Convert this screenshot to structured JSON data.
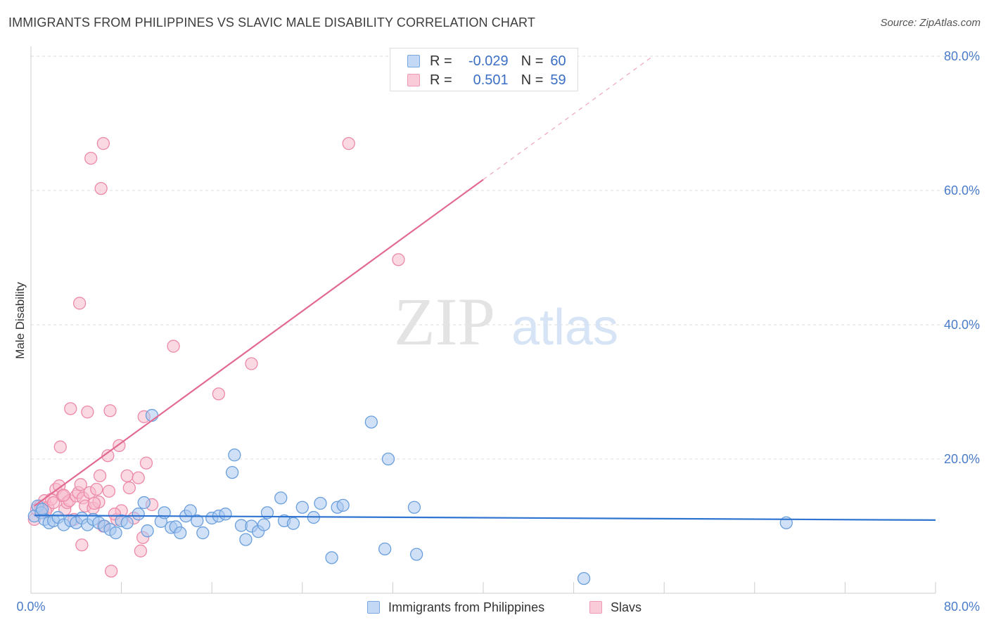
{
  "title": "IMMIGRANTS FROM PHILIPPINES VS SLAVIC MALE DISABILITY CORRELATION CHART",
  "source": "Source: ZipAtlas.com",
  "watermark": {
    "zip": "ZIP",
    "atlas": "atlas"
  },
  "legend": {
    "r_label": "R =",
    "n_label": "N =",
    "series": [
      {
        "r": "-0.029",
        "n": "60"
      },
      {
        "r": "0.501",
        "n": "59"
      }
    ]
  },
  "colors": {
    "blue_fill": "#a9c8f0",
    "blue_stroke": "#6a9fdc",
    "blue_line": "#2f74d0",
    "pink_fill": "#f7b9cc",
    "pink_stroke": "#ec8aa8",
    "pink_line": "#e26a92",
    "axis_text": "#4a7cc9",
    "grid": "#dddddd"
  },
  "chart_data": {
    "type": "scatter",
    "title": "IMMIGRANTS FROM PHILIPPINES VS SLAVIC MALE DISABILITY CORRELATION CHART",
    "xlabel": "",
    "ylabel": "Male Disability",
    "xlim": [
      0,
      80
    ],
    "ylim": [
      0,
      80
    ],
    "x_tick_labels": [
      "0.0%",
      "80.0%"
    ],
    "y_ticks": [
      20,
      40,
      60,
      80
    ],
    "y_tick_labels": [
      "20.0%",
      "40.0%",
      "60.0%",
      "80.0%"
    ],
    "series": [
      {
        "name": "Immigrants from Philippines",
        "r": -0.029,
        "n": 60,
        "trend": {
          "x0": 0.3,
          "y0": 11.6,
          "x1": 80,
          "y1": 10.9,
          "x_solid_end": 80
        },
        "points": [
          [
            0.3,
            11.5
          ],
          [
            0.6,
            13.0
          ],
          [
            0.9,
            12.0
          ],
          [
            1.2,
            11.0
          ],
          [
            1.6,
            10.5
          ],
          [
            2.0,
            10.8
          ],
          [
            2.4,
            11.3
          ],
          [
            2.9,
            10.2
          ],
          [
            3.5,
            10.8
          ],
          [
            4.0,
            10.5
          ],
          [
            4.5,
            11.2
          ],
          [
            5.0,
            10.2
          ],
          [
            5.5,
            11.0
          ],
          [
            6.0,
            10.5
          ],
          [
            6.5,
            10.0
          ],
          [
            7.0,
            9.5
          ],
          [
            7.5,
            9.0
          ],
          [
            8.0,
            10.8
          ],
          [
            8.5,
            10.5
          ],
          [
            9.5,
            11.8
          ],
          [
            10.0,
            13.5
          ],
          [
            10.3,
            9.3
          ],
          [
            10.7,
            26.5
          ],
          [
            11.5,
            10.7
          ],
          [
            11.8,
            12.0
          ],
          [
            12.4,
            9.8
          ],
          [
            12.8,
            9.9
          ],
          [
            13.2,
            9.0
          ],
          [
            13.7,
            11.5
          ],
          [
            14.1,
            12.3
          ],
          [
            14.7,
            10.8
          ],
          [
            15.2,
            9.0
          ],
          [
            16.0,
            11.2
          ],
          [
            16.6,
            11.5
          ],
          [
            17.2,
            11.8
          ],
          [
            17.8,
            18.0
          ],
          [
            18.0,
            20.6
          ],
          [
            18.6,
            10.1
          ],
          [
            19.0,
            8.0
          ],
          [
            19.5,
            10.0
          ],
          [
            20.1,
            9.2
          ],
          [
            20.6,
            10.2
          ],
          [
            20.9,
            12.0
          ],
          [
            22.1,
            14.2
          ],
          [
            22.4,
            10.8
          ],
          [
            23.2,
            10.4
          ],
          [
            24.0,
            12.8
          ],
          [
            25.0,
            11.3
          ],
          [
            25.6,
            13.4
          ],
          [
            26.6,
            5.3
          ],
          [
            27.1,
            12.8
          ],
          [
            27.6,
            13.1
          ],
          [
            30.1,
            25.5
          ],
          [
            31.3,
            6.6
          ],
          [
            31.6,
            20.0
          ],
          [
            33.9,
            12.8
          ],
          [
            34.1,
            5.8
          ],
          [
            48.9,
            2.2
          ],
          [
            66.8,
            10.5
          ],
          [
            1.0,
            12.5
          ]
        ]
      },
      {
        "name": "Slavs",
        "r": 0.501,
        "n": 59,
        "trend": {
          "x0": 0.3,
          "y0": 13.0,
          "x1": 55,
          "y1": 80,
          "x_solid_end": 40
        },
        "points": [
          [
            0.3,
            11.0
          ],
          [
            0.5,
            12.5
          ],
          [
            0.8,
            13.0
          ],
          [
            1.0,
            12.0
          ],
          [
            1.2,
            13.8
          ],
          [
            1.5,
            12.8
          ],
          [
            1.8,
            14.0
          ],
          [
            2.0,
            13.5
          ],
          [
            2.2,
            15.5
          ],
          [
            2.5,
            16.0
          ],
          [
            2.8,
            14.5
          ],
          [
            2.6,
            21.8
          ],
          [
            3.0,
            12.5
          ],
          [
            3.2,
            13.5
          ],
          [
            3.4,
            13.8
          ],
          [
            3.5,
            27.5
          ],
          [
            3.8,
            11.0
          ],
          [
            4.0,
            14.5
          ],
          [
            4.2,
            15.0
          ],
          [
            4.3,
            43.2
          ],
          [
            4.4,
            16.2
          ],
          [
            4.6,
            14.2
          ],
          [
            4.8,
            13.0
          ],
          [
            4.5,
            7.2
          ],
          [
            5.0,
            27.0
          ],
          [
            5.2,
            15.0
          ],
          [
            5.3,
            64.8
          ],
          [
            5.5,
            12.7
          ],
          [
            5.8,
            15.5
          ],
          [
            6.0,
            13.6
          ],
          [
            6.1,
            17.5
          ],
          [
            6.2,
            60.3
          ],
          [
            6.4,
            10.0
          ],
          [
            6.4,
            67.0
          ],
          [
            6.8,
            20.5
          ],
          [
            6.9,
            15.2
          ],
          [
            7.0,
            27.2
          ],
          [
            7.1,
            3.3
          ],
          [
            7.6,
            11.0
          ],
          [
            7.8,
            22.0
          ],
          [
            8.0,
            12.3
          ],
          [
            8.5,
            17.5
          ],
          [
            8.7,
            15.7
          ],
          [
            9.1,
            11.2
          ],
          [
            9.5,
            17.2
          ],
          [
            9.7,
            6.3
          ],
          [
            9.9,
            8.3
          ],
          [
            10.0,
            26.3
          ],
          [
            10.2,
            19.4
          ],
          [
            10.7,
            13.2
          ],
          [
            12.6,
            36.8
          ],
          [
            16.6,
            29.7
          ],
          [
            19.5,
            34.2
          ],
          [
            28.1,
            67.0
          ],
          [
            32.5,
            49.7
          ],
          [
            1.3,
            12.2
          ],
          [
            2.9,
            14.6
          ],
          [
            5.6,
            13.4
          ],
          [
            7.4,
            11.8
          ]
        ]
      }
    ]
  }
}
